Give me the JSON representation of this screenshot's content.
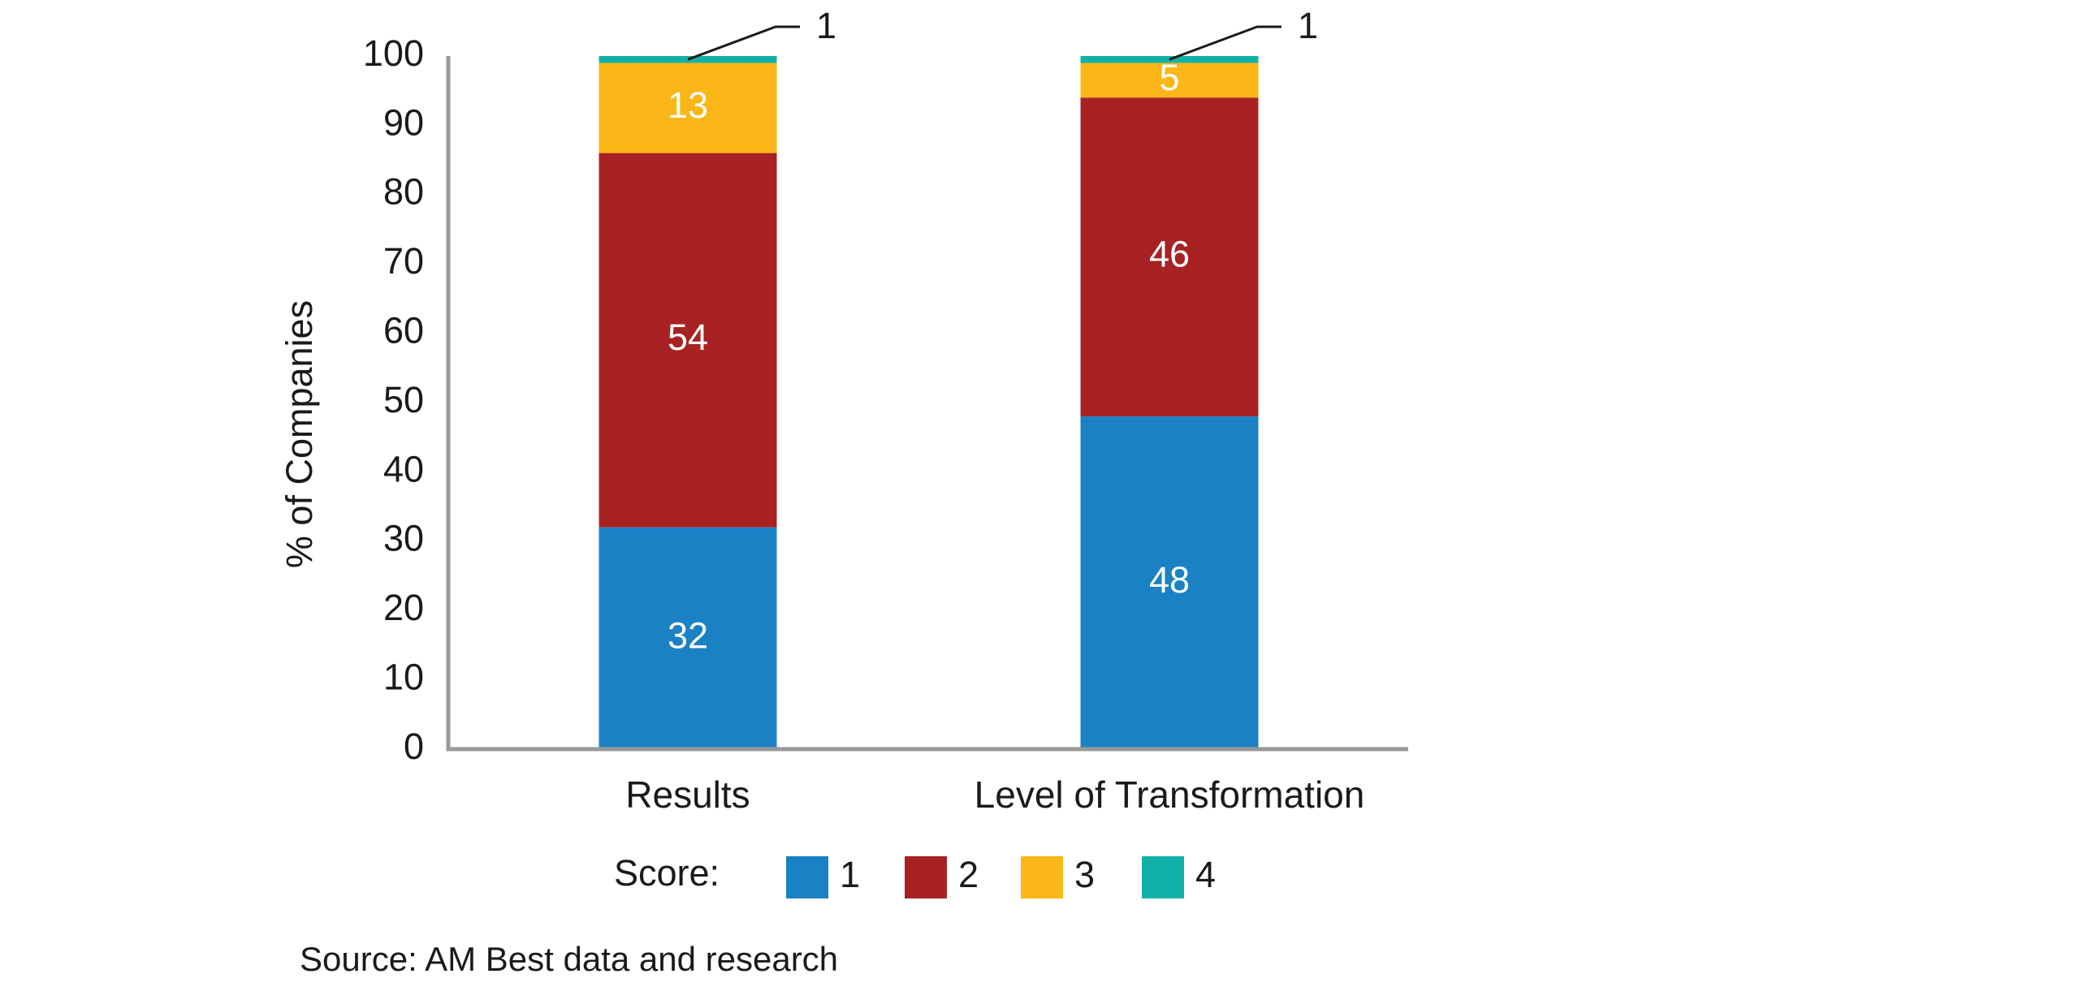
{
  "chart_data": {
    "type": "stacked_bar",
    "y_label": "% of Companies",
    "categories": [
      "Results",
      "Level of Transformation"
    ],
    "series": [
      {
        "name": "1",
        "color": "#1a82c4",
        "values": [
          32,
          48
        ]
      },
      {
        "name": "2",
        "color": "#a82224",
        "values": [
          54,
          46
        ]
      },
      {
        "name": "3",
        "color": "#fbb617",
        "values": [
          13,
          5
        ]
      },
      {
        "name": "4",
        "color": "#12b1a8",
        "values": [
          1,
          1
        ]
      }
    ],
    "ylim": [
      0,
      100
    ],
    "yticks": [
      0,
      10,
      20,
      30,
      40,
      50,
      60,
      70,
      80,
      90,
      100
    ],
    "grid": false,
    "legend_title": "Score:",
    "source": "Source: AM Best data and research"
  }
}
